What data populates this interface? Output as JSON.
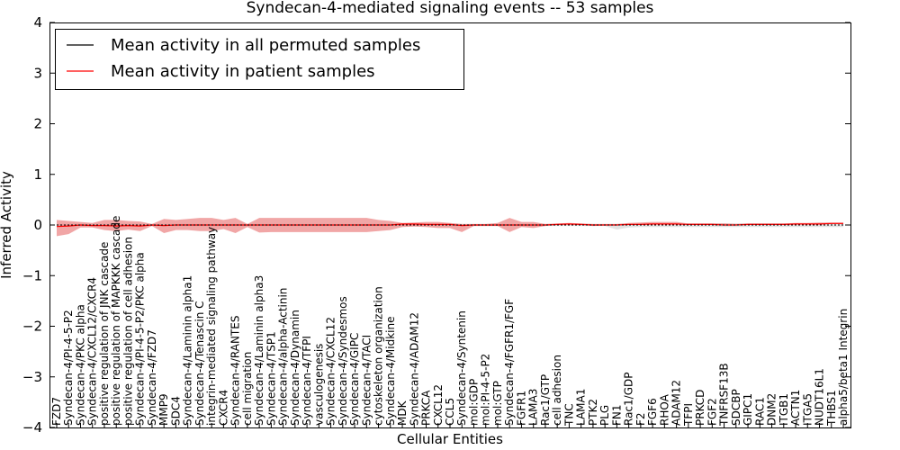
{
  "chart_data": {
    "type": "line",
    "title": "Syndecan-4-mediated signaling events -- 53 samples",
    "xlabel": "Cellular Entities",
    "ylabel": "Inferred Activity",
    "ylim": [
      -4,
      4
    ],
    "yticks": [
      -4,
      -3,
      -2,
      -1,
      0,
      1,
      2,
      3,
      4
    ],
    "ytick_labels": [
      "−4",
      "−3",
      "−2",
      "−1",
      "0",
      "1",
      "2",
      "3",
      "4"
    ],
    "grid": false,
    "legend_position": "top-left",
    "categories": [
      "FZD7",
      "Syndecan-4/PI-4-5-P2",
      "Syndecan-4/PKC alpha",
      "Syndecan-4/CXCL12/CXCR4",
      "positive regulation of JNK cascade",
      "positive regulation of MAPKKK cascade",
      "positive regulation of cell adhesion",
      "Syndecan-4/PI-4-5-P2/PKC alpha",
      "Syndecan-4/FZD7",
      "MMP9",
      "SDC4",
      "Syndecan-4/Laminin alpha1",
      "Syndecan-4/Tenascin C",
      "integrin-mediated signaling pathway",
      "CXCR4",
      "Syndecan-4/RANTES",
      "cell migration",
      "Syndecan-4/Laminin alpha3",
      "Syndecan-4/TSP1",
      "Syndecan-4/alpha-Actinin",
      "Syndecan-4/Dynamin",
      "Syndecan-4/TFPI",
      "vasculogenesis",
      "Syndecan-4/CXCL12",
      "Syndecan-4/Syndesmos",
      "Syndecan-4/GIPC",
      "Syndecan-4/TACI",
      "cytoskeleton organization",
      "Syndecan-4/Midkine",
      "MDK",
      "Syndecan-4/ADAM12",
      "PRKCA",
      "CXCL12",
      "CCL5",
      "Syndecan-4/Syntenin",
      "mol:GDP",
      "mol:PI-4-5-P2",
      "mol:GTP",
      "Syndecan-4/FGFR1/FGF",
      "FGFR1",
      "LAMA3",
      "Rac1/GTP",
      "cell adhesion",
      "TNC",
      "LAMA1",
      "PTK2",
      "PLG",
      "FN1",
      "Rac1/GDP",
      "F2",
      "FGF6",
      "RHOA",
      "ADAM12",
      "TFPI",
      "PRKCD",
      "FGF2",
      "TNFRSF13B",
      "SDCBP",
      "GIPC1",
      "RAC1",
      "DNM2",
      "ITGB1",
      "ACTN1",
      "ITGA5",
      "NUDT16L1",
      "THBS1",
      "alpha5/beta1 Integrin"
    ],
    "series": [
      {
        "name": "Mean activity in all permuted samples",
        "color": "#000000",
        "values": [
          0.0,
          0.0,
          0.0,
          0.0,
          0.0,
          0.0,
          0.0,
          0.0,
          0.0,
          0.0,
          0.0,
          0.0,
          0.0,
          0.0,
          0.0,
          0.0,
          0.0,
          0.0,
          0.0,
          0.0,
          0.0,
          0.0,
          0.0,
          0.0,
          0.0,
          0.0,
          0.0,
          0.0,
          0.0,
          0.0,
          0.0,
          0.0,
          0.0,
          0.0,
          0.0,
          0.0,
          0.0,
          0.0,
          0.0,
          0.0,
          0.0,
          0.0,
          0.0,
          0.0,
          0.0,
          0.0,
          0.0,
          0.0,
          0.0,
          0.0,
          0.0,
          0.0,
          0.0,
          0.0,
          0.0,
          0.0,
          0.0,
          0.0,
          0.0,
          0.0,
          0.0,
          0.0,
          0.0,
          0.0,
          0.0,
          0.0,
          0.0
        ],
        "band_low": [
          -0.02,
          -0.02,
          -0.02,
          -0.02,
          -0.02,
          -0.02,
          -0.02,
          -0.02,
          -0.02,
          -0.02,
          -0.02,
          -0.02,
          -0.02,
          -0.02,
          -0.02,
          -0.02,
          -0.02,
          -0.02,
          -0.02,
          -0.02,
          -0.02,
          -0.02,
          -0.02,
          -0.02,
          -0.02,
          -0.02,
          -0.02,
          -0.02,
          -0.02,
          -0.02,
          -0.02,
          -0.02,
          -0.02,
          -0.02,
          -0.02,
          -0.02,
          -0.02,
          -0.02,
          -0.02,
          -0.02,
          -0.02,
          -0.02,
          -0.02,
          -0.02,
          -0.02,
          -0.02,
          -0.02,
          -0.09,
          -0.05,
          -0.04,
          -0.04,
          -0.04,
          -0.04,
          -0.04,
          -0.04,
          -0.04,
          -0.04,
          -0.04,
          -0.04,
          -0.04,
          -0.04,
          -0.04,
          -0.04,
          -0.04,
          -0.04,
          -0.04,
          -0.04
        ],
        "band_high": [
          0.02,
          0.02,
          0.02,
          0.02,
          0.02,
          0.02,
          0.02,
          0.02,
          0.02,
          0.02,
          0.02,
          0.02,
          0.02,
          0.02,
          0.02,
          0.02,
          0.02,
          0.02,
          0.02,
          0.02,
          0.02,
          0.02,
          0.02,
          0.02,
          0.02,
          0.02,
          0.02,
          0.02,
          0.02,
          0.02,
          0.02,
          0.02,
          0.02,
          0.02,
          0.02,
          0.02,
          0.02,
          0.02,
          0.02,
          0.02,
          0.02,
          0.02,
          0.02,
          0.02,
          0.02,
          0.02,
          0.02,
          0.02,
          0.02,
          0.03,
          0.03,
          0.03,
          0.03,
          0.03,
          0.03,
          0.03,
          0.03,
          0.03,
          0.03,
          0.03,
          0.03,
          0.03,
          0.03,
          0.03,
          0.03,
          0.03,
          0.03
        ]
      },
      {
        "name": "Mean activity in patient samples",
        "color": "#ff0000",
        "values": [
          -0.03,
          -0.02,
          0.0,
          -0.01,
          -0.01,
          -0.02,
          -0.01,
          -0.02,
          0.0,
          -0.01,
          0.0,
          0.0,
          0.0,
          0.0,
          0.0,
          0.0,
          0.0,
          0.0,
          0.0,
          0.0,
          0.0,
          0.0,
          0.0,
          0.0,
          0.0,
          0.0,
          0.0,
          0.0,
          0.0,
          0.02,
          0.02,
          0.01,
          0.01,
          0.01,
          -0.01,
          0.0,
          0.0,
          0.0,
          0.0,
          0.0,
          0.0,
          0.0,
          0.01,
          0.02,
          0.01,
          0.0,
          0.0,
          0.0,
          0.01,
          0.01,
          0.02,
          0.02,
          0.02,
          0.01,
          0.01,
          0.01,
          0.0,
          0.0,
          0.01,
          0.01,
          0.01,
          0.01,
          0.02,
          0.02,
          0.02,
          0.03,
          0.03
        ],
        "band_low": [
          -0.22,
          -0.18,
          -0.05,
          -0.05,
          -0.1,
          -0.12,
          -0.09,
          -0.12,
          -0.02,
          -0.16,
          -0.1,
          -0.1,
          -0.12,
          -0.12,
          -0.08,
          -0.16,
          -0.04,
          -0.15,
          -0.14,
          -0.14,
          -0.14,
          -0.14,
          -0.14,
          -0.14,
          -0.14,
          -0.14,
          -0.14,
          -0.12,
          -0.1,
          -0.04,
          -0.03,
          -0.04,
          -0.06,
          -0.06,
          -0.14,
          -0.02,
          -0.02,
          -0.02,
          -0.14,
          -0.04,
          -0.06,
          -0.02,
          0.0,
          0.01,
          0.0,
          -0.02,
          -0.01,
          -0.01,
          0.0,
          0.0,
          0.01,
          0.01,
          0.01,
          0.0,
          0.0,
          0.0,
          -0.01,
          -0.01,
          0.0,
          0.0,
          0.0,
          0.0,
          0.01,
          0.01,
          0.01,
          0.02,
          0.02
        ],
        "band_high": [
          0.1,
          0.08,
          0.06,
          0.04,
          0.1,
          0.1,
          0.08,
          0.07,
          0.02,
          0.12,
          0.1,
          0.12,
          0.14,
          0.14,
          0.1,
          0.14,
          0.02,
          0.14,
          0.14,
          0.14,
          0.14,
          0.14,
          0.14,
          0.14,
          0.14,
          0.14,
          0.14,
          0.1,
          0.08,
          0.04,
          0.05,
          0.06,
          0.06,
          0.04,
          0.02,
          0.02,
          0.02,
          0.04,
          0.14,
          0.06,
          0.06,
          0.02,
          0.03,
          0.04,
          0.03,
          0.02,
          0.02,
          0.02,
          0.04,
          0.05,
          0.06,
          0.06,
          0.06,
          0.03,
          0.03,
          0.03,
          0.03,
          0.02,
          0.03,
          0.03,
          0.03,
          0.03,
          0.04,
          0.04,
          0.05,
          0.05,
          0.05
        ]
      }
    ]
  }
}
